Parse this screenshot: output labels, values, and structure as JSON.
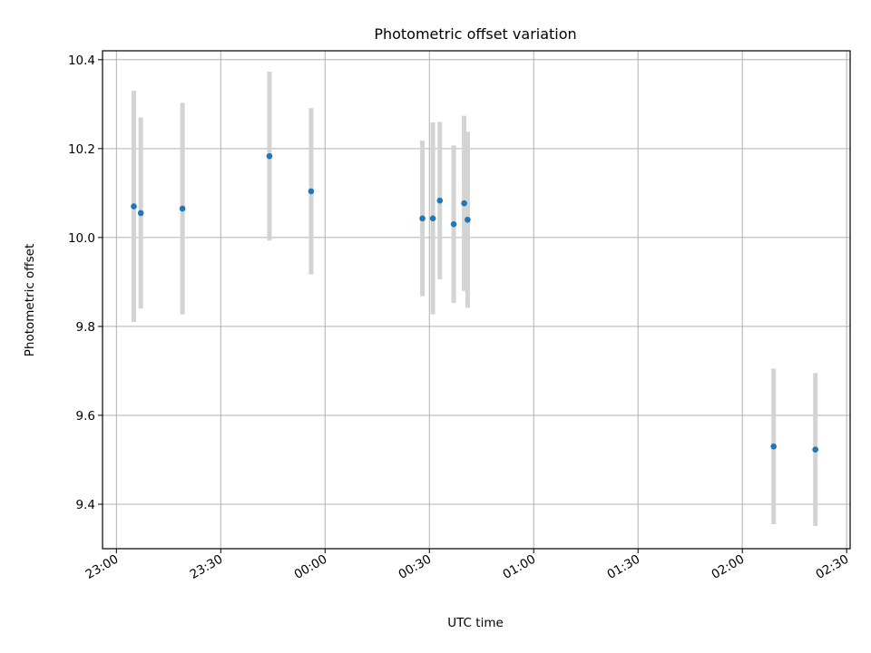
{
  "chart_data": {
    "type": "scatter",
    "title": "Photometric offset variation",
    "xlabel": "UTC time",
    "ylabel": "Photometric offset",
    "x_ticks": [
      "23:00",
      "23:30",
      "00:00",
      "00:30",
      "01:00",
      "01:30",
      "02:00",
      "02:30"
    ],
    "y_ticks": [
      "9.4",
      "9.6",
      "9.8",
      "10.0",
      "10.2",
      "10.4"
    ],
    "ylim": [
      9.3,
      10.42
    ],
    "xlim": [
      "22:56",
      "02:31"
    ],
    "grid": true,
    "colors": {
      "point": "#1f77b4",
      "errorbar": "#d3d3d3"
    },
    "points": [
      {
        "x": "23:05",
        "y": 10.07,
        "yerr": 0.26
      },
      {
        "x": "23:07",
        "y": 10.055,
        "yerr": 0.215
      },
      {
        "x": "23:19",
        "y": 10.065,
        "yerr": 0.238
      },
      {
        "x": "23:44",
        "y": 10.183,
        "yerr": 0.19
      },
      {
        "x": "23:56",
        "y": 10.104,
        "yerr": 0.187
      },
      {
        "x": "00:28",
        "y": 10.043,
        "yerr": 0.175
      },
      {
        "x": "00:31",
        "y": 10.043,
        "yerr": 0.216
      },
      {
        "x": "00:33",
        "y": 10.083,
        "yerr": 0.177
      },
      {
        "x": "00:37",
        "y": 10.03,
        "yerr": 0.177
      },
      {
        "x": "00:40",
        "y": 10.077,
        "yerr": 0.197
      },
      {
        "x": "00:41",
        "y": 10.04,
        "yerr": 0.198
      },
      {
        "x": "02:09",
        "y": 9.53,
        "yerr": 0.175
      },
      {
        "x": "02:21",
        "y": 9.523,
        "yerr": 0.172
      }
    ]
  }
}
